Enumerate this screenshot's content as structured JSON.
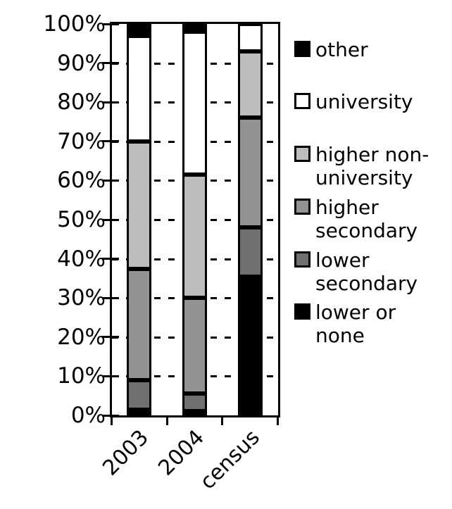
{
  "chart_data": {
    "type": "bar",
    "subtype": "stacked-100-percent",
    "title": "",
    "xlabel": "",
    "ylabel": "",
    "categories": [
      "2003",
      "2004",
      "census"
    ],
    "series": [
      {
        "name": "lower or none",
        "color": "#000000",
        "values": [
          1.5,
          1.0,
          35.5
        ]
      },
      {
        "name": "lower secondary",
        "color": "#707070",
        "values": [
          7.5,
          4.5,
          12.5
        ]
      },
      {
        "name": "higher secondary",
        "color": "#929292",
        "values": [
          28.5,
          24.5,
          28.0
        ]
      },
      {
        "name": "higher non-university",
        "color": "#bdbdbd",
        "values": [
          32.5,
          31.5,
          17.0
        ]
      },
      {
        "name": "university",
        "color": "#ffffff",
        "values": [
          27.0,
          36.5,
          7.0
        ]
      },
      {
        "name": "other",
        "color": "#000000",
        "values": [
          3.0,
          2.0,
          0.0
        ]
      }
    ],
    "y_axis": {
      "min": 0,
      "max": 100,
      "tick_labels": [
        "0%",
        "10%",
        "20%",
        "30%",
        "40%",
        "50%",
        "60%",
        "70%",
        "80%",
        "90%",
        "100%"
      ]
    },
    "grid": "dashed-horizontal",
    "legend_position": "right",
    "legend": [
      {
        "label": "other",
        "color": "#000000"
      },
      {
        "label": "university",
        "color": "#ffffff"
      },
      {
        "label": "higher non-university",
        "color": "#bdbdbd"
      },
      {
        "label": "higher secondary",
        "color": "#929292"
      },
      {
        "label": "lower secondary",
        "color": "#707070"
      },
      {
        "label": "lower or none",
        "color": "#000000"
      }
    ]
  }
}
